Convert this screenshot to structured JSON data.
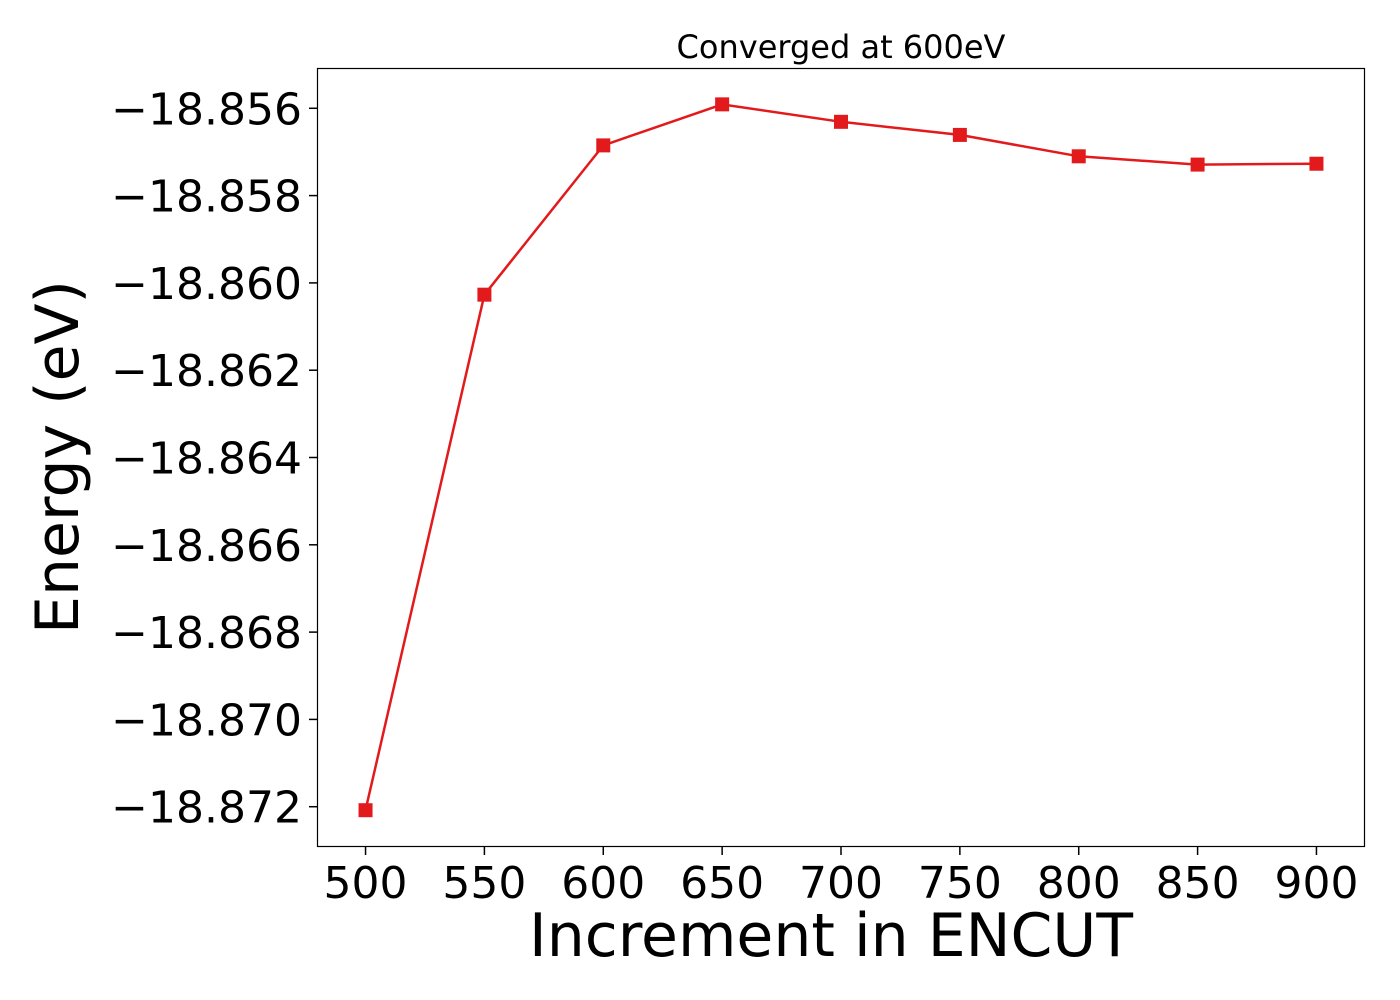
{
  "chart_data": {
    "type": "line",
    "title": "Converged at 600eV",
    "xlabel": "Increment in ENCUT",
    "ylabel": "Energy (eV)",
    "x": [
      500,
      550,
      600,
      650,
      700,
      750,
      800,
      850,
      900
    ],
    "series": [
      {
        "values": [
          -18.87208,
          -18.86027,
          -18.85685,
          -18.85591,
          -18.85631,
          -18.85661,
          -18.8571,
          -18.85729,
          -18.85727
        ],
        "color": "#e31a1c",
        "marker": "square"
      }
    ],
    "xticks": [
      500,
      550,
      600,
      650,
      700,
      750,
      800,
      850,
      900
    ],
    "xtick_labels": [
      "500",
      "550",
      "600",
      "650",
      "700",
      "750",
      "800",
      "850",
      "900"
    ],
    "yticks": [
      -18.872,
      -18.87,
      -18.868,
      -18.866,
      -18.864,
      -18.862,
      -18.86,
      -18.858,
      -18.856
    ],
    "ytick_labels": [
      "−18.872",
      "−18.870",
      "−18.868",
      "−18.866",
      "−18.864",
      "−18.862",
      "−18.860",
      "−18.858",
      "−18.856"
    ],
    "xlim": [
      480,
      920
    ],
    "ylim": [
      -18.8729,
      -18.8551
    ],
    "grid": false,
    "legend": "none"
  }
}
